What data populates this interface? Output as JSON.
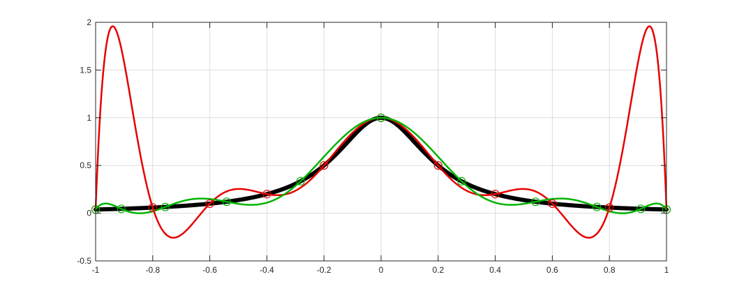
{
  "chart_data": {
    "type": "line",
    "title": "",
    "xlabel": "",
    "ylabel": "",
    "xlim": [
      -1,
      1
    ],
    "ylim": [
      -0.5,
      2
    ],
    "grid": true,
    "legend": "none",
    "x_ticks": [
      "-1",
      "-0.8",
      "-0.6",
      "-0.4",
      "-0.2",
      "0",
      "0.2",
      "0.4",
      "0.6",
      "0.8",
      "1"
    ],
    "y_ticks": [
      "-0.5",
      "0",
      "0.5",
      "1",
      "1.5",
      "2"
    ],
    "x_tick_values": [
      -1,
      -0.8,
      -0.6,
      -0.4,
      -0.2,
      0,
      0.2,
      0.4,
      0.6,
      0.8,
      1
    ],
    "y_tick_values": [
      -0.5,
      0,
      0.5,
      1,
      1.5,
      2
    ],
    "series": [
      {
        "kind": "function",
        "function": "1/(1+25x^2)",
        "color": "#000000",
        "line_width": "thick",
        "x": [
          -1,
          -0.9,
          -0.8,
          -0.7,
          -0.6,
          -0.5,
          -0.4,
          -0.3,
          -0.2,
          -0.1,
          0,
          0.1,
          0.2,
          0.3,
          0.4,
          0.5,
          0.6,
          0.7,
          0.8,
          0.9,
          1
        ],
        "values": [
          0.038,
          0.047,
          0.059,
          0.075,
          0.1,
          0.138,
          0.2,
          0.308,
          0.5,
          0.8,
          1,
          0.8,
          0.5,
          0.308,
          0.2,
          0.138,
          0.1,
          0.075,
          0.059,
          0.047,
          0.038
        ]
      },
      {
        "kind": "interpolant",
        "nodes": "equispaced",
        "color": "#e60000",
        "x": [
          -1,
          -0.8,
          -0.6,
          -0.4,
          -0.2,
          0,
          0.2,
          0.4,
          0.6,
          0.8,
          1
        ],
        "values": [
          0.038,
          0.059,
          0.1,
          0.2,
          0.5,
          1,
          0.5,
          0.2,
          0.1,
          0.059,
          0.038
        ]
      },
      {
        "kind": "interpolant",
        "nodes": "chebyshev",
        "color": "#00b400",
        "x": [
          -1,
          -0.91,
          -0.756,
          -0.541,
          -0.282,
          0,
          0.282,
          0.541,
          0.756,
          0.91,
          1
        ],
        "values": [
          0.038,
          0.046,
          0.065,
          0.12,
          0.335,
          1,
          0.335,
          0.12,
          0.065,
          0.046,
          0.038
        ]
      }
    ]
  }
}
